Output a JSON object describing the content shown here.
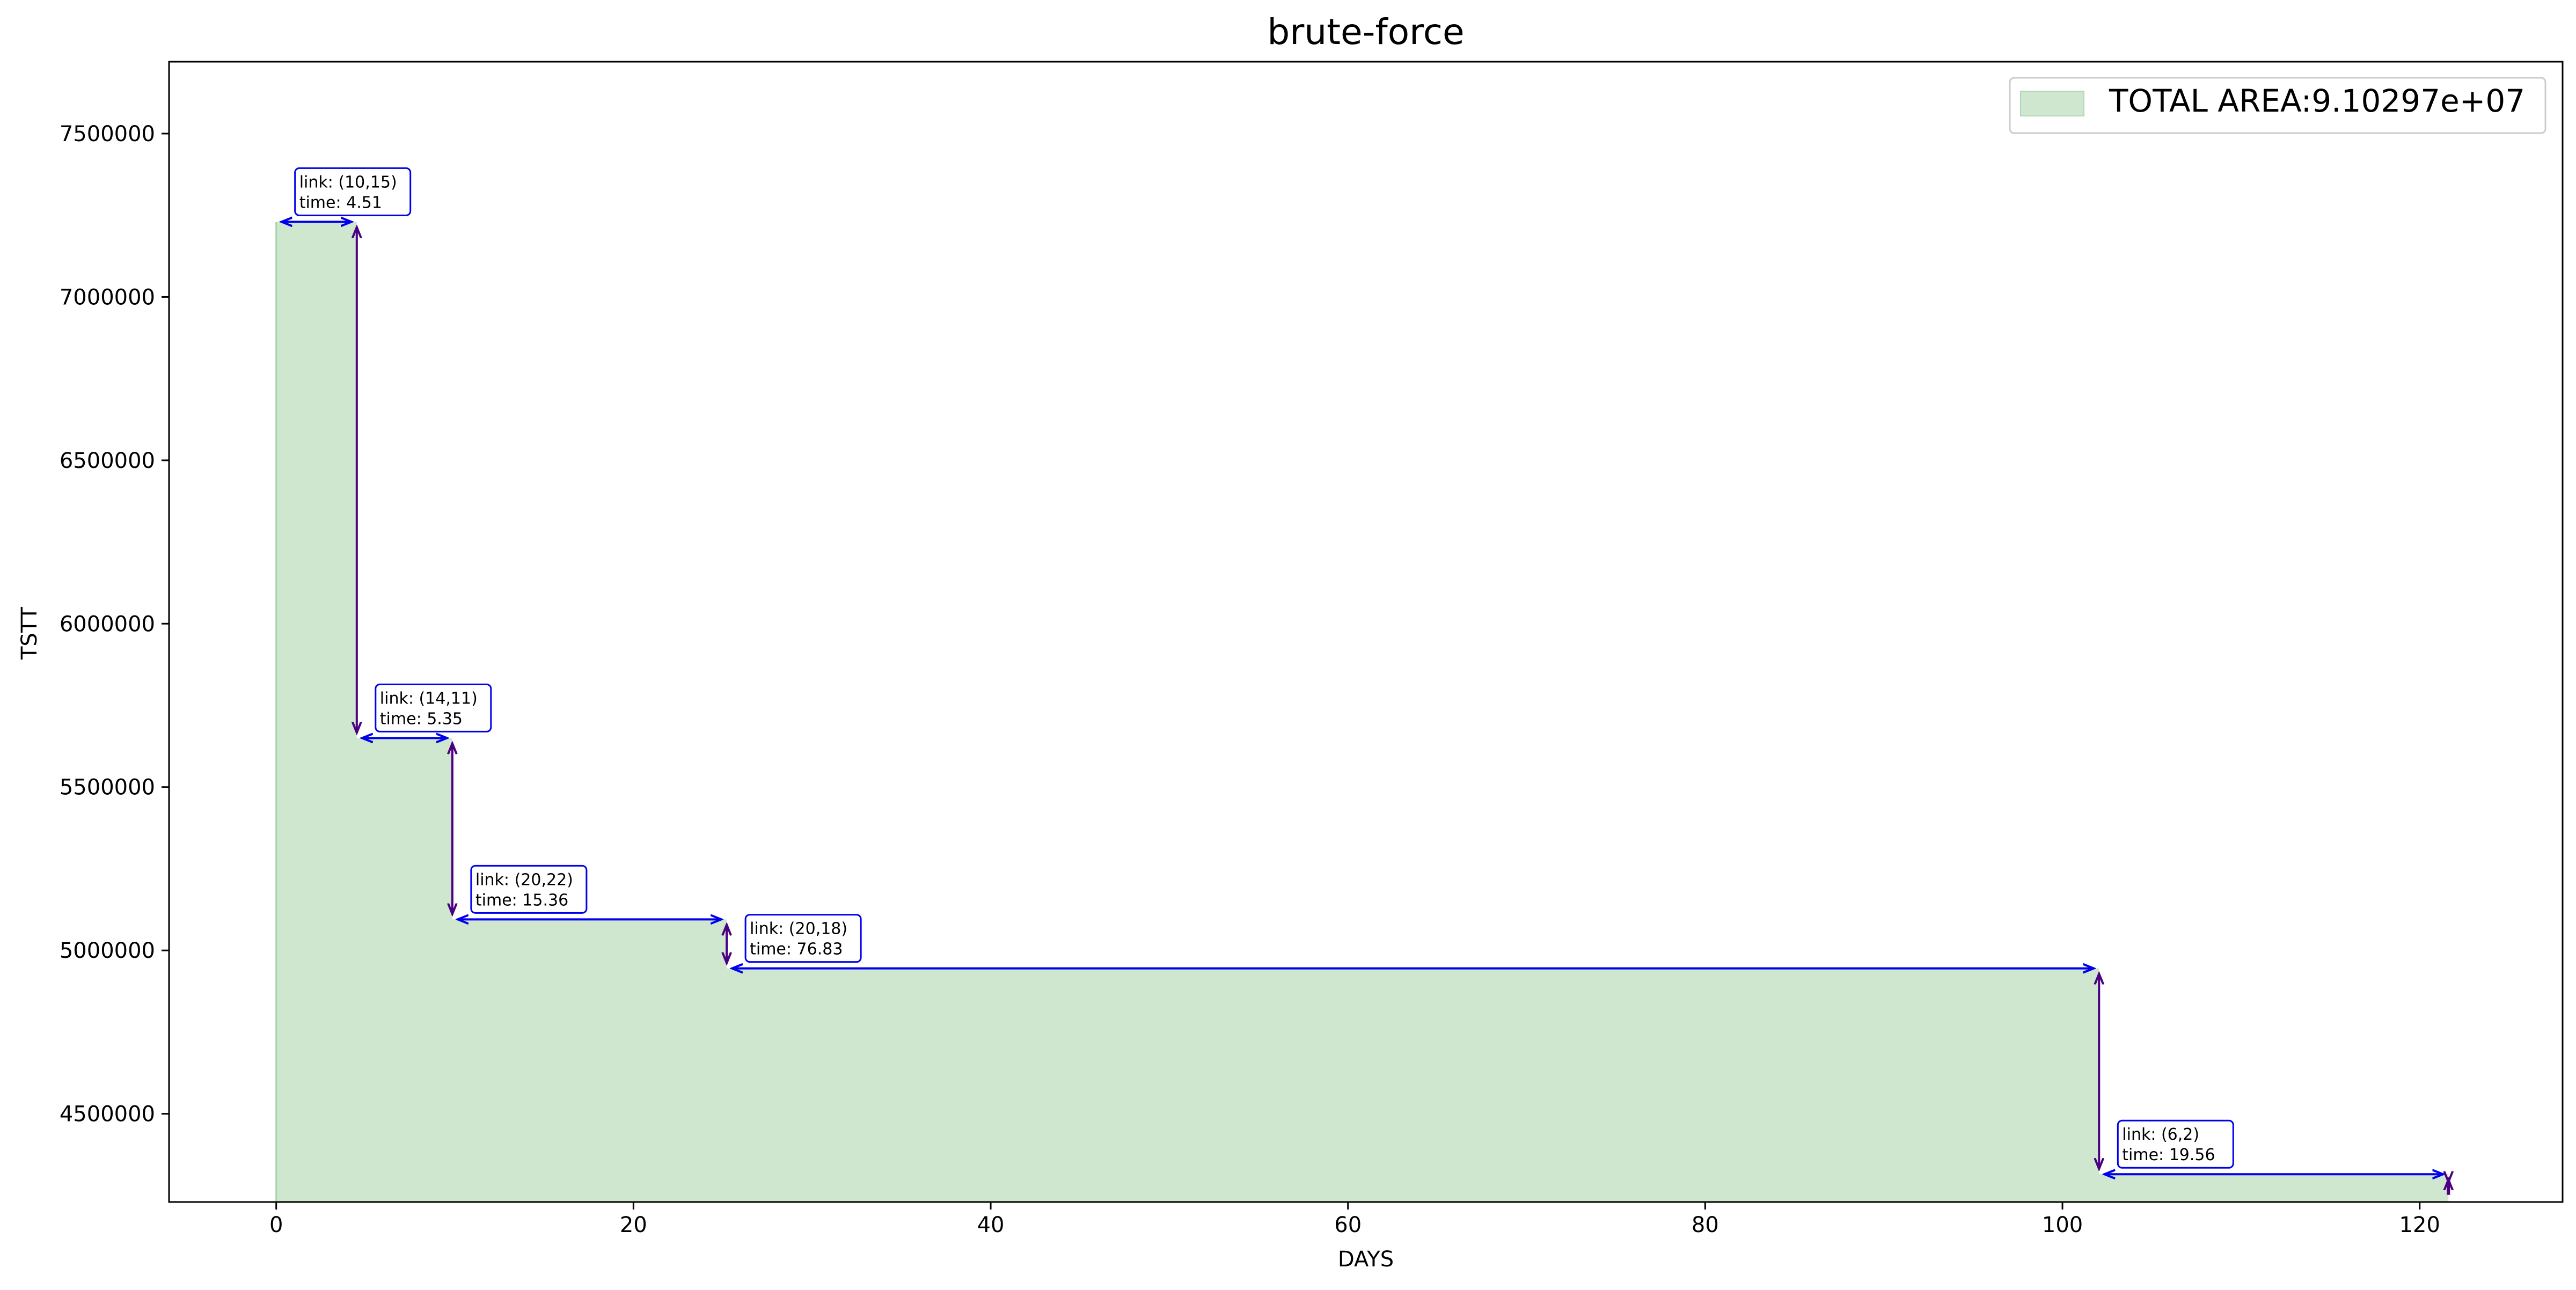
{
  "chart_data": {
    "type": "area",
    "title": "brute-force",
    "xlabel": "DAYS",
    "ylabel": "TSTT",
    "xlim": [
      -6,
      128
    ],
    "ylim": [
      4230000,
      7720000
    ],
    "xticks": [
      0,
      20,
      40,
      60,
      80,
      100,
      120
    ],
    "yticks": [
      4500000,
      5000000,
      5500000,
      6000000,
      6500000,
      7000000,
      7500000
    ],
    "grid": false,
    "legend": {
      "location": "top-right",
      "label": "TOTAL AREA:9.10297e+07"
    },
    "fill_color": "#cfe6cf",
    "step_x": [
      0,
      4.51,
      9.86,
      25.22,
      102.05,
      121.61
    ],
    "step_y": [
      7230000,
      5650000,
      5095000,
      4945000,
      4315000,
      4275000
    ],
    "repairs": [
      {
        "link": "link: (10,15)",
        "time": "time: 4.51"
      },
      {
        "link": "link: (14,11)",
        "time": "time: 5.35"
      },
      {
        "link": "link: (20,22)",
        "time": "time: 15.36"
      },
      {
        "link": "link: (20,18)",
        "time": "time: 76.83"
      },
      {
        "link": "link: (6,2)",
        "time": "time: 19.56"
      }
    ],
    "colors": {
      "horizontal_arrow": "#0000ee",
      "vertical_arrow": "#4b0082",
      "box_border": "#0000ee"
    }
  }
}
